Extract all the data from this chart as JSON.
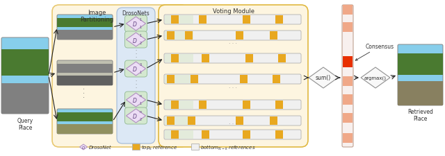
{
  "bg_color": "#ffffff",
  "yellow_bg": "#fdf5e0",
  "yellow_border": "#e8c870",
  "blue_bg": "#dce8f5",
  "blue_border": "#a0b8d8",
  "green_bg": "#d4e8d0",
  "green_border": "#90b890",
  "voting_bg": "#fdf5e0",
  "voting_border": "#e0b840",
  "bar_bg": "#eeeeee",
  "bar_border": "#b0b0b0",
  "bar_top_color": "#e8a820",
  "consensus_bar_orange": "#e83000",
  "consensus_bar_light": "#f0a888",
  "diamond_gray_bg": "#f8f8f8",
  "diamond_gray_border": "#909090",
  "diamond_purple_bg": "#ecddf5",
  "diamond_purple_border": "#b090c0",
  "arrow_color": "#202020",
  "title_image_partition": "Image\nPartitioning",
  "title_drosonets": "DrosoNets",
  "title_voting": "Voting Module",
  "label_query": "Query\nPlace",
  "label_retrieved": "Retrieved\nPlace",
  "label_consensus": "Consensus",
  "label_sum": "sum()",
  "label_argmax": "argmax()"
}
